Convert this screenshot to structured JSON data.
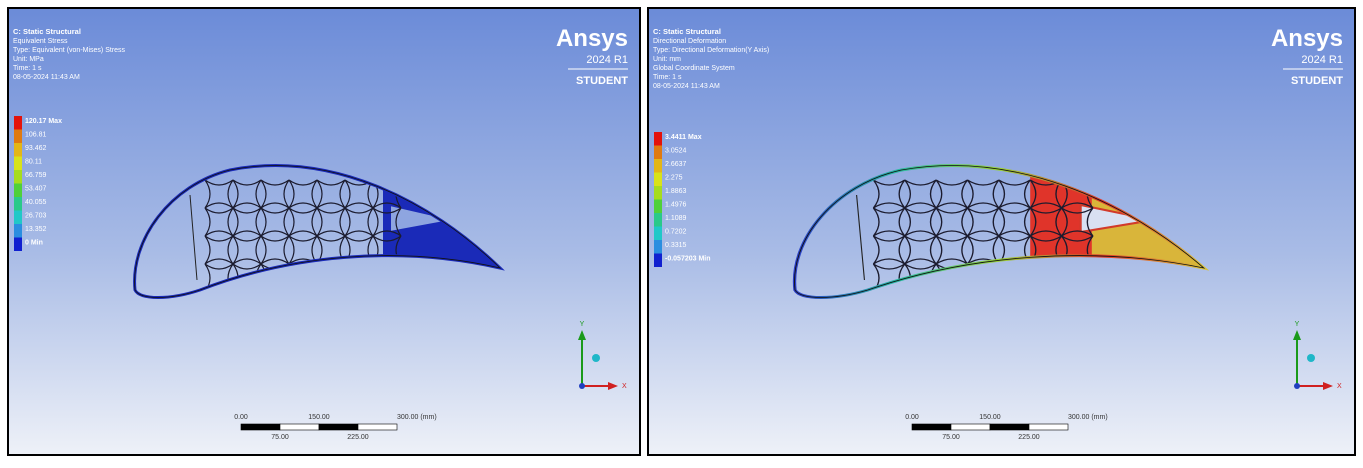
{
  "panels": [
    {
      "header": [
        "C: Static Structural",
        "Equivalent Stress",
        "Type: Equivalent (von-Mises) Stress",
        "Unit: MPa",
        "Time: 1 s",
        "08-05-2024 11:43 AM"
      ],
      "legend": [
        "120.17 Max",
        "106.81",
        "93.462",
        "80.11",
        "66.759",
        "53.407",
        "40.055",
        "26.703",
        "13.352",
        "0 Min"
      ],
      "logo": {
        "brand": "Ansys",
        "version": "2024 R1",
        "edition": "STUDENT"
      },
      "scale": {
        "top": [
          "0.00",
          "150.00",
          "300.00 (mm)"
        ],
        "bottom": [
          "75.00",
          "225.00"
        ]
      },
      "axes": {
        "y": "Y",
        "x": "X"
      }
    },
    {
      "header": [
        "C: Static Structural",
        "Directional Deformation",
        "Type: Directional Deformation(Y Axis)",
        "Unit: mm",
        "Global Coordinate System",
        "Time: 1 s",
        "08-05-2024 11:43 AM"
      ],
      "legend": [
        "3.4411 Max",
        "3.0524",
        "2.6637",
        "2.275",
        "1.8863",
        "1.4976",
        "1.1089",
        "0.7202",
        "0.3315",
        "-0.057203 Min"
      ],
      "logo": {
        "brand": "Ansys",
        "version": "2024 R1",
        "edition": "STUDENT"
      },
      "scale": {
        "top": [
          "0.00",
          "150.00",
          "300.00 (mm)"
        ],
        "bottom": [
          "75.00",
          "225.00"
        ]
      },
      "axes": {
        "y": "Y",
        "x": "X"
      }
    }
  ]
}
